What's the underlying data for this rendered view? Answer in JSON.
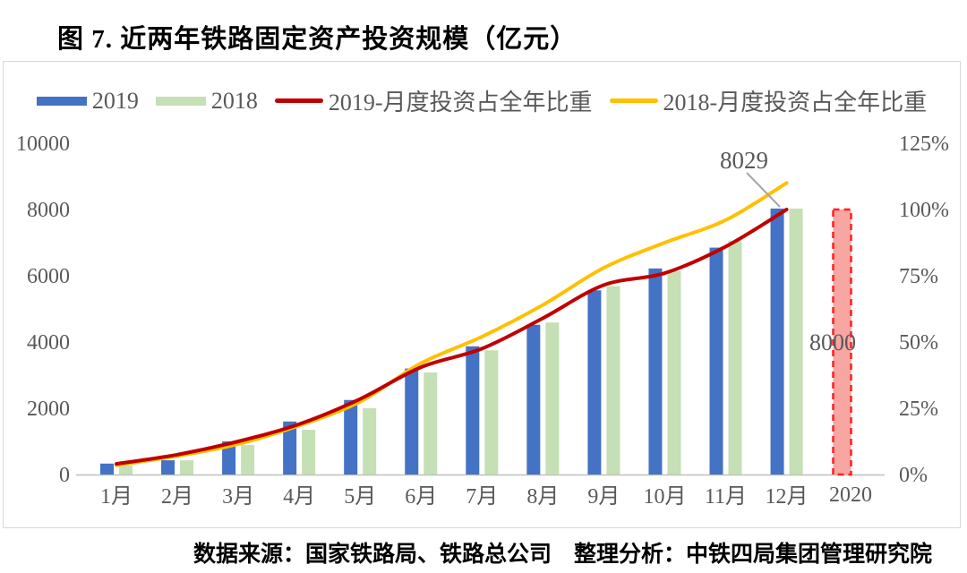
{
  "title": "图 7. 近两年铁路固定资产投资规模（亿元）",
  "source": "数据来源：国家铁路局、铁路总公司　整理分析：中铁四局集团管理研究院",
  "colors": {
    "bar_2019": "#4472C4",
    "bar_2018": "#C5E0B4",
    "line_2019": "#C00000",
    "line_2018": "#FFC000",
    "bar_2020_fill": "#F7A6A2",
    "bar_2020_border": "#FF1F1F",
    "axis_text": "#595959",
    "axis_line": "#BFBFBF",
    "annotation_leader": "#A6A6A6",
    "frame_border": "#D9D9D9"
  },
  "legend": [
    {
      "label": "2019",
      "type": "bar",
      "color": "#4472C4"
    },
    {
      "label": "2018",
      "type": "bar",
      "color": "#C5E0B4"
    },
    {
      "label": "2019-月度投资占全年比重",
      "type": "line",
      "color": "#C00000"
    },
    {
      "label": "2018-月度投资占全年比重",
      "type": "line",
      "color": "#FFC000"
    }
  ],
  "chart_data": {
    "type": "bar+line combo (cumulative investment bars on left axis, cumulative share lines on right axis)",
    "title": "图 7. 近两年铁路固定资产投资规模（亿元）",
    "categories": [
      "1月",
      "2月",
      "3月",
      "4月",
      "5月",
      "6月",
      "7月",
      "8月",
      "9月",
      "10月",
      "11月",
      "12月"
    ],
    "series": [
      {
        "name": "2019",
        "type": "bar",
        "axis": "left",
        "color": "#4472C4",
        "values": [
          330,
          430,
          1000,
          1600,
          2250,
          3200,
          3870,
          4520,
          5560,
          6220,
          6850,
          8029
        ]
      },
      {
        "name": "2018",
        "type": "bar",
        "axis": "left",
        "color": "#C5E0B4",
        "values": [
          270,
          430,
          890,
          1350,
          2000,
          3080,
          3750,
          4590,
          5690,
          6140,
          7060,
          8028
        ]
      },
      {
        "name": "2019-月度投资占全年比重",
        "type": "line",
        "axis": "right",
        "color": "#C00000",
        "values_pct": [
          4,
          7.5,
          12.5,
          19,
          28.5,
          40.5,
          47.5,
          59,
          71.5,
          76,
          86,
          100
        ]
      },
      {
        "name": "2018-月度投资占全年比重",
        "type": "line",
        "axis": "right",
        "color": "#FFC000",
        "values_pct": [
          3.5,
          7,
          11.5,
          18.5,
          27.5,
          42,
          52,
          64,
          78,
          87.5,
          96,
          110
        ]
      }
    ],
    "bar_2020": {
      "category": "2020",
      "value": 8000,
      "label": "8000",
      "fill": "#F7A6A2",
      "border": "#FF1F1F",
      "style": "dashed"
    },
    "annotation": {
      "text": "8029",
      "points_to": "2019 12月 bar top"
    },
    "left_axis": {
      "ticks": [
        0,
        2000,
        4000,
        6000,
        8000,
        10000
      ],
      "labels": [
        "0",
        "2000",
        "4000",
        "6000",
        "8000",
        "10000"
      ],
      "range": [
        0,
        10000
      ]
    },
    "right_axis": {
      "ticks_pct": [
        0,
        25,
        50,
        75,
        100,
        125
      ],
      "labels": [
        "0%",
        "25%",
        "50%",
        "75%",
        "100%",
        "125%"
      ],
      "range_pct": [
        0,
        125
      ]
    },
    "xlabel": "",
    "ylabel": "",
    "grid": false,
    "legend_position": "top"
  }
}
